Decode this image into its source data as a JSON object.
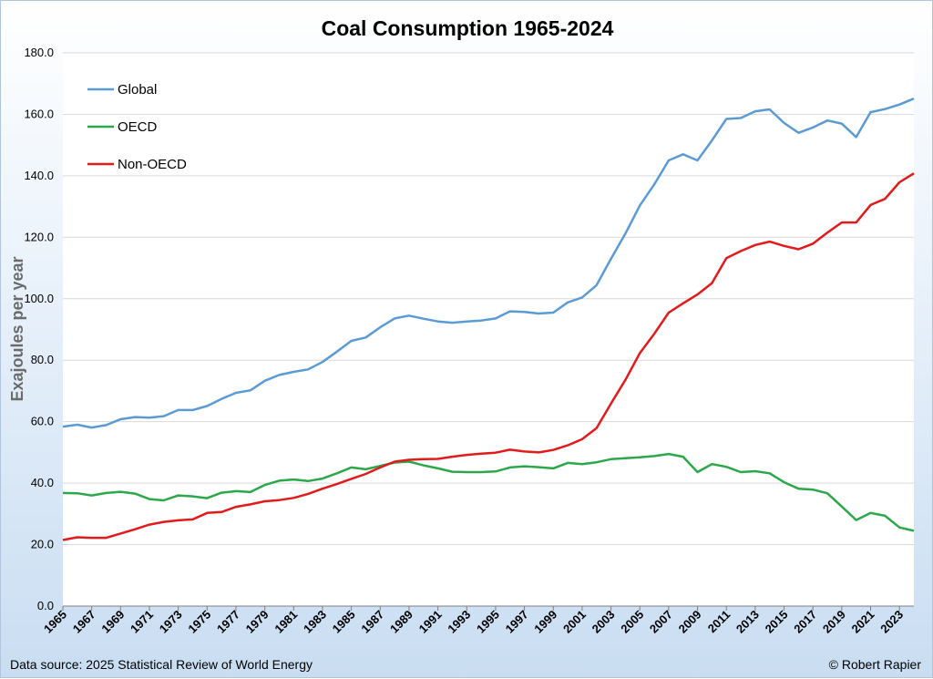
{
  "chart_data": {
    "type": "line",
    "title": "Coal Consumption 1965-2024",
    "ylabel": "Exajoules per year",
    "ylim": [
      0,
      180
    ],
    "yticks": [
      "0.0",
      "20.0",
      "40.0",
      "60.0",
      "80.0",
      "100.0",
      "120.0",
      "140.0",
      "160.0",
      "180.0"
    ],
    "xtick_labels": [
      "1965",
      "1967",
      "1969",
      "1971",
      "1973",
      "1975",
      "1977",
      "1979",
      "1981",
      "1983",
      "1985",
      "1987",
      "1989",
      "1991",
      "1993",
      "1995",
      "1997",
      "1999",
      "2001",
      "2003",
      "2005",
      "2007",
      "2009",
      "2011",
      "2013",
      "2015",
      "2017",
      "2019",
      "2021",
      "2023"
    ],
    "x": [
      1965,
      1966,
      1967,
      1968,
      1969,
      1970,
      1971,
      1972,
      1973,
      1974,
      1975,
      1976,
      1977,
      1978,
      1979,
      1980,
      1981,
      1982,
      1983,
      1984,
      1985,
      1986,
      1987,
      1988,
      1989,
      1990,
      1991,
      1992,
      1993,
      1994,
      1995,
      1996,
      1997,
      1998,
      1999,
      2000,
      2001,
      2002,
      2003,
      2004,
      2005,
      2006,
      2007,
      2008,
      2009,
      2010,
      2011,
      2012,
      2013,
      2014,
      2015,
      2016,
      2017,
      2018,
      2019,
      2020,
      2021,
      2022,
      2023,
      2024
    ],
    "grid": true,
    "legend_position": "top-left",
    "series": [
      {
        "name": "Global",
        "color": "#5b9bd5",
        "values": [
          58.4,
          59.0,
          58.1,
          58.9,
          60.8,
          61.5,
          61.3,
          61.8,
          63.8,
          63.8,
          65.1,
          67.4,
          69.4,
          70.2,
          73.3,
          75.2,
          76.2,
          77.0,
          79.4,
          82.8,
          86.3,
          87.4,
          90.7,
          93.6,
          94.5,
          93.5,
          92.6,
          92.2,
          92.6,
          92.9,
          93.6,
          95.9,
          95.7,
          95.2,
          95.5,
          98.8,
          100.4,
          104.4,
          113.0,
          121.2,
          130.3,
          137.2,
          145.0,
          147.0,
          145.0,
          151.5,
          158.5,
          158.8,
          161.0,
          161.6,
          157.2,
          154.0,
          155.7,
          158.0,
          157.0,
          152.6,
          160.7,
          161.7,
          163.2,
          165.1
        ]
      },
      {
        "name": "OECD",
        "color": "#2ca84a",
        "values": [
          36.8,
          36.7,
          36.0,
          36.8,
          37.2,
          36.6,
          34.8,
          34.4,
          36.0,
          35.7,
          35.1,
          36.9,
          37.4,
          37.1,
          39.4,
          40.8,
          41.2,
          40.7,
          41.5,
          43.2,
          45.1,
          44.5,
          45.6,
          46.7,
          47.0,
          45.8,
          44.8,
          43.7,
          43.6,
          43.6,
          43.8,
          45.1,
          45.5,
          45.2,
          44.8,
          46.6,
          46.2,
          46.8,
          47.8,
          48.1,
          48.4,
          48.8,
          49.5,
          48.6,
          43.6,
          46.2,
          45.3,
          43.6,
          43.9,
          43.2,
          40.3,
          38.2,
          37.9,
          36.7,
          32.4,
          28.0,
          30.3,
          29.4,
          25.6,
          24.5
        ]
      },
      {
        "name": "Non-OECD",
        "color": "#e31a1c",
        "values": [
          21.5,
          22.4,
          22.2,
          22.2,
          23.6,
          25.0,
          26.5,
          27.4,
          27.9,
          28.2,
          30.3,
          30.6,
          32.3,
          33.1,
          34.1,
          34.5,
          35.2,
          36.5,
          38.2,
          39.7,
          41.4,
          43.0,
          45.1,
          47.0,
          47.6,
          47.8,
          47.9,
          48.6,
          49.2,
          49.6,
          49.9,
          50.9,
          50.3,
          50.0,
          50.8,
          52.3,
          54.3,
          57.9,
          65.9,
          73.6,
          82.3,
          88.6,
          95.5,
          98.5,
          101.4,
          105.1,
          113.2,
          115.5,
          117.5,
          118.6,
          117.2,
          116.1,
          117.9,
          121.5,
          124.8,
          124.8,
          130.5,
          132.5,
          137.9,
          140.8
        ]
      }
    ]
  },
  "footer": {
    "source": "Data source: 2025 Statistical Review of World Energy",
    "credit": "© Robert Rapier"
  }
}
